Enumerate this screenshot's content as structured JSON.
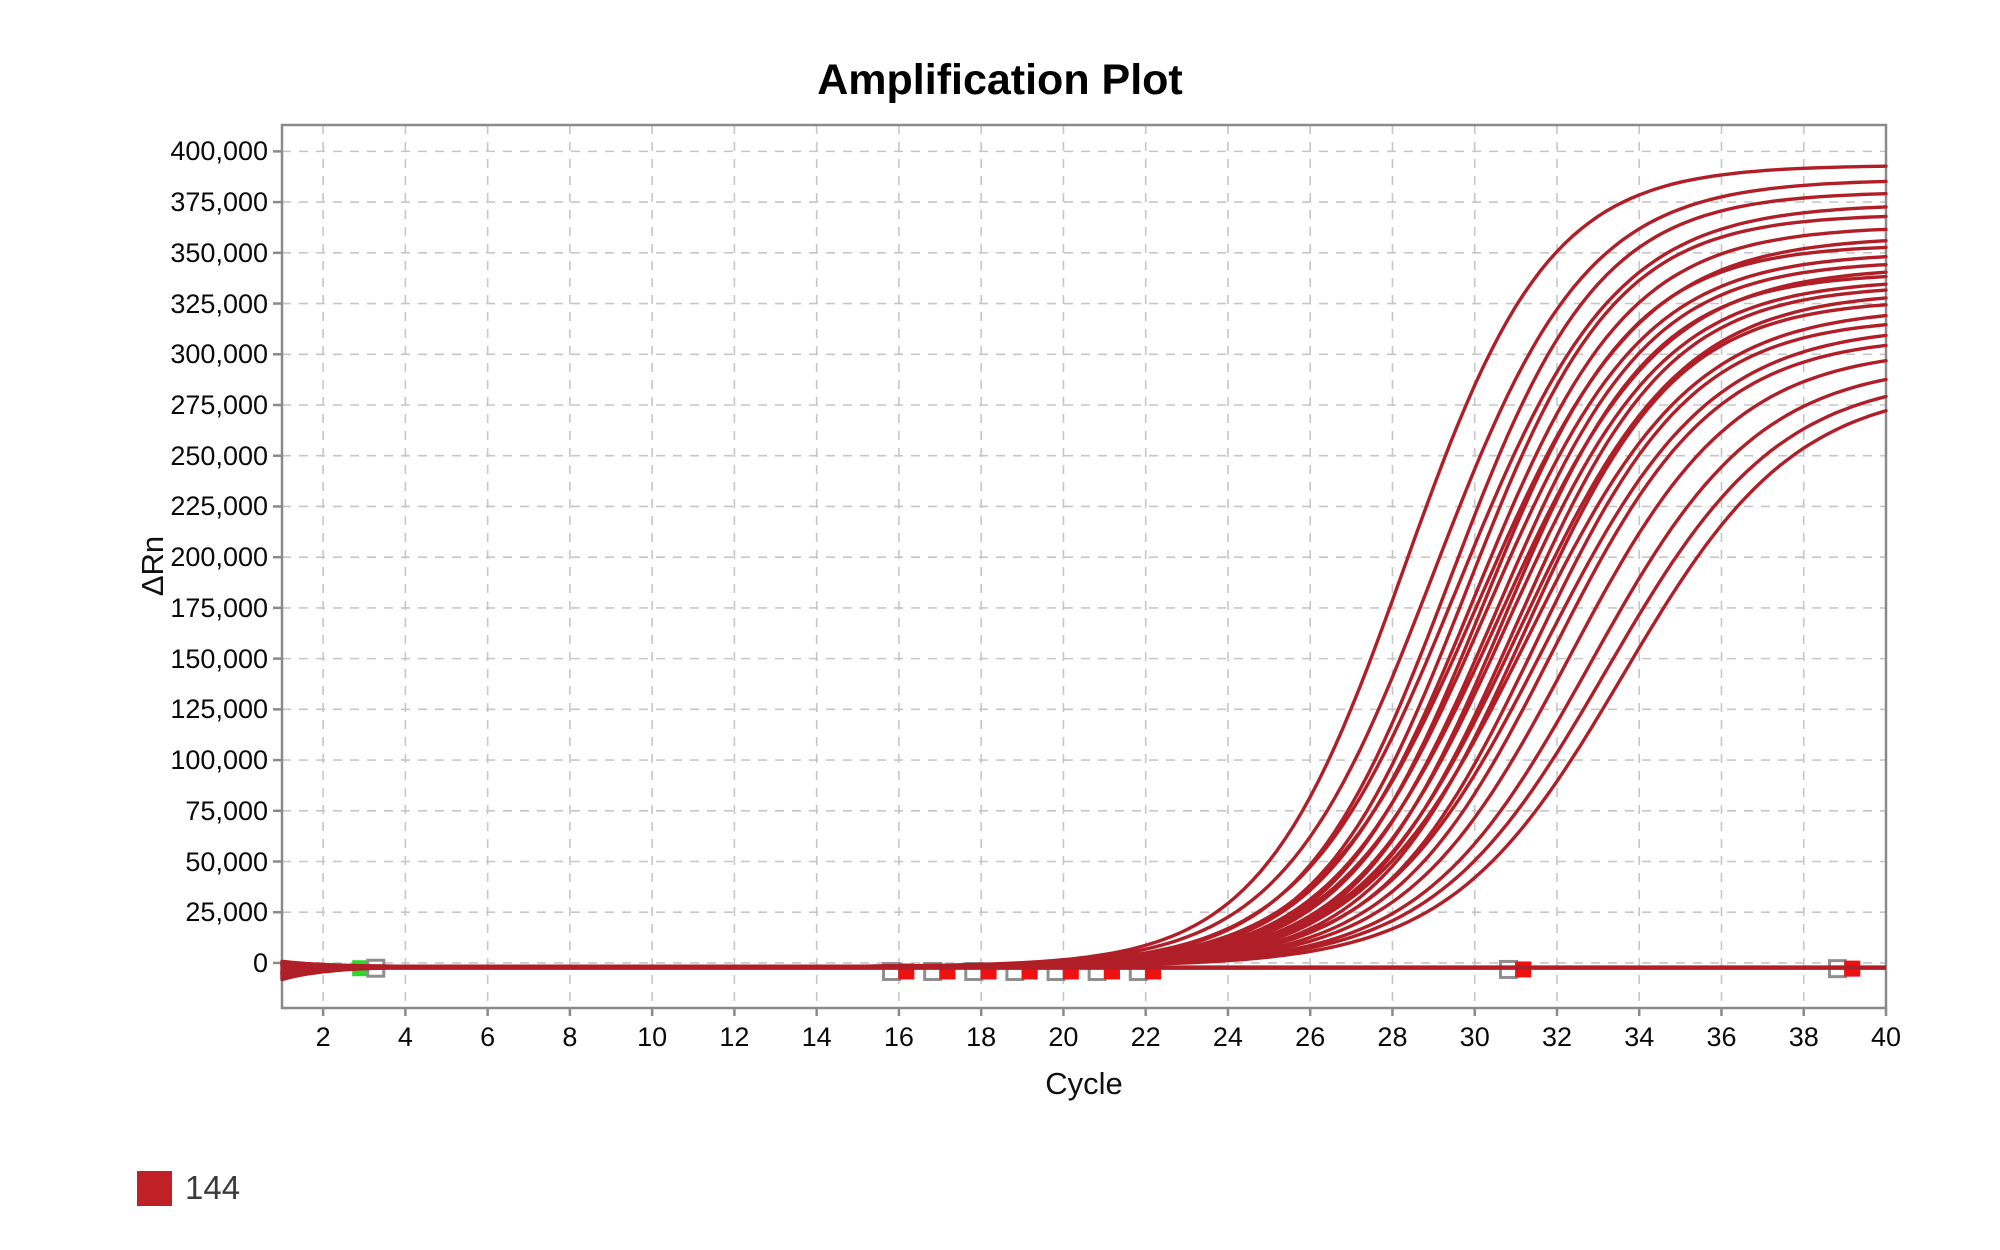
{
  "chart_data": {
    "type": "line",
    "title": "Amplification Plot",
    "xlabel": "Cycle",
    "ylabel": "ΔRn",
    "x_axis": {
      "min": 1,
      "max": 40,
      "ticks": [
        2,
        4,
        6,
        8,
        10,
        12,
        14,
        16,
        18,
        20,
        22,
        24,
        26,
        28,
        30,
        32,
        34,
        36,
        38,
        40
      ]
    },
    "y_axis": {
      "min": -22200,
      "max": 413000,
      "ticks": [
        0,
        25000,
        50000,
        75000,
        100000,
        125000,
        150000,
        175000,
        200000,
        225000,
        250000,
        275000,
        300000,
        325000,
        350000,
        375000,
        400000
      ],
      "tick_format": "comma"
    },
    "grid": "dashed-both-axes",
    "plot_border_color": "#8a8a8a",
    "grid_color": "#c6c6c6",
    "series_color": "#b01f27",
    "series_model": "value(c) = baseline + start*exp(-(c-1)/1.1) + plateau/(1+exp(-(c-midpoint)/slope))",
    "series": [
      {
        "plateau": 395000,
        "midpoint": 28.3,
        "slope": 1.75,
        "start": 2600,
        "baseline": -1800
      },
      {
        "plateau": 388000,
        "midpoint": 29.0,
        "slope": 1.85,
        "start": -5800,
        "baseline": -1800
      },
      {
        "plateau": 382000,
        "midpoint": 29.4,
        "slope": 1.8,
        "start": 1400,
        "baseline": -1800
      },
      {
        "plateau": 376000,
        "midpoint": 29.6,
        "slope": 1.9,
        "start": -4400,
        "baseline": -1800
      },
      {
        "plateau": 371000,
        "midpoint": 29.8,
        "slope": 1.8,
        "start": 200,
        "baseline": -1800
      },
      {
        "plateau": 365000,
        "midpoint": 30.0,
        "slope": 1.85,
        "start": -2600,
        "baseline": -1800
      },
      {
        "plateau": 360000,
        "midpoint": 30.1,
        "slope": 1.95,
        "start": 1900,
        "baseline": -1800
      },
      {
        "plateau": 356000,
        "midpoint": 30.2,
        "slope": 1.8,
        "start": -5300,
        "baseline": -1800
      },
      {
        "plateau": 352000,
        "midpoint": 30.3,
        "slope": 1.9,
        "start": -900,
        "baseline": -1800
      },
      {
        "plateau": 348000,
        "midpoint": 30.5,
        "slope": 1.85,
        "start": -3600,
        "baseline": -1800
      },
      {
        "plateau": 345000,
        "midpoint": 30.6,
        "slope": 1.95,
        "start": 900,
        "baseline": -1800
      },
      {
        "plateau": 342000,
        "midpoint": 30.7,
        "slope": 1.8,
        "start": -2100,
        "baseline": -1800
      },
      {
        "plateau": 339000,
        "midpoint": 30.8,
        "slope": 1.9,
        "start": -6400,
        "baseline": -1800
      },
      {
        "plateau": 336000,
        "midpoint": 31.0,
        "slope": 1.85,
        "start": 500,
        "baseline": -1800
      },
      {
        "plateau": 333000,
        "midpoint": 31.1,
        "slope": 1.95,
        "start": -3100,
        "baseline": -1800
      },
      {
        "plateau": 329000,
        "midpoint": 31.2,
        "slope": 1.85,
        "start": -1500,
        "baseline": -1800
      },
      {
        "plateau": 325000,
        "midpoint": 31.3,
        "slope": 2.0,
        "start": 2300,
        "baseline": -1800
      },
      {
        "plateau": 320000,
        "midpoint": 31.5,
        "slope": 1.9,
        "start": -4000,
        "baseline": -1800
      },
      {
        "plateau": 316000,
        "midpoint": 31.7,
        "slope": 2.0,
        "start": -600,
        "baseline": -1800
      },
      {
        "plateau": 311000,
        "midpoint": 31.9,
        "slope": 1.95,
        "start": -4900,
        "baseline": -1800
      },
      {
        "plateau": 305000,
        "midpoint": 32.3,
        "slope": 2.0,
        "start": 1200,
        "baseline": -1800
      },
      {
        "plateau": 298000,
        "midpoint": 32.8,
        "slope": 2.05,
        "start": -2700,
        "baseline": -1800
      },
      {
        "plateau": 292000,
        "midpoint": 33.2,
        "slope": 2.1,
        "start": -3400,
        "baseline": -1800
      },
      {
        "plateau": 287000,
        "midpoint": 33.6,
        "slope": 2.1,
        "start": 700,
        "baseline": -1800
      }
    ],
    "flat_series": [
      {
        "y": -2000
      },
      {
        "y": -2600
      }
    ],
    "markers": {
      "size": 16,
      "colors": {
        "red": "#ee1111",
        "green": "#2bd82b",
        "gray_border": "#8e8e8e",
        "gray_fill": "#ffffff"
      },
      "items": [
        {
          "x": 2.9,
          "y": -2600,
          "type": "green"
        },
        {
          "x": 3.28,
          "y": -2600,
          "type": "gray"
        },
        {
          "x": 15.82,
          "y": -4200,
          "type": "gray"
        },
        {
          "x": 16.18,
          "y": -4200,
          "type": "red"
        },
        {
          "x": 16.82,
          "y": -4200,
          "type": "gray"
        },
        {
          "x": 17.18,
          "y": -4200,
          "type": "red"
        },
        {
          "x": 17.82,
          "y": -4200,
          "type": "gray"
        },
        {
          "x": 18.18,
          "y": -4200,
          "type": "red"
        },
        {
          "x": 18.82,
          "y": -4200,
          "type": "gray"
        },
        {
          "x": 19.18,
          "y": -4200,
          "type": "red"
        },
        {
          "x": 19.82,
          "y": -4200,
          "type": "gray"
        },
        {
          "x": 20.18,
          "y": -4200,
          "type": "red"
        },
        {
          "x": 20.82,
          "y": -4200,
          "type": "gray"
        },
        {
          "x": 21.18,
          "y": -4200,
          "type": "red"
        },
        {
          "x": 21.82,
          "y": -4200,
          "type": "gray"
        },
        {
          "x": 22.18,
          "y": -4200,
          "type": "red"
        },
        {
          "x": 30.82,
          "y": -3200,
          "type": "gray"
        },
        {
          "x": 31.18,
          "y": -3200,
          "type": "red"
        },
        {
          "x": 38.82,
          "y": -2800,
          "type": "gray"
        },
        {
          "x": 39.18,
          "y": -2800,
          "type": "red"
        }
      ]
    },
    "legend": [
      {
        "label": "144",
        "color": "#c02127",
        "position": "bottom-left"
      }
    ]
  }
}
